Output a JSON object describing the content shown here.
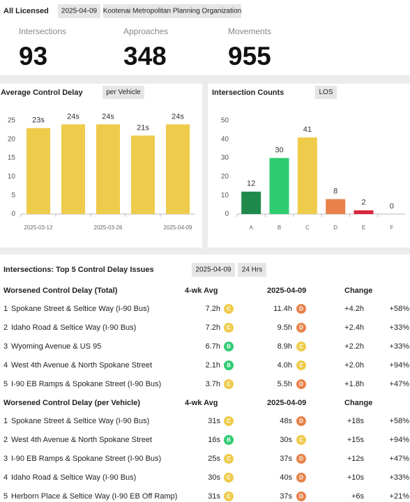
{
  "header": {
    "title": "All Licensed",
    "date": "2025-04-09",
    "organization": "Kootenai Metropolitan Planning Organization"
  },
  "kpis": [
    {
      "label": "Intersections",
      "value": 93
    },
    {
      "label": "Approaches",
      "value": 348
    },
    {
      "label": "Movements",
      "value": 955
    }
  ],
  "chart_data": [
    {
      "type": "bar",
      "title": "Average Control Delay",
      "subtitle": "per Vehicle",
      "categories": [
        "2025-03-12",
        null,
        "2025-03-26",
        null,
        "2025-04-09"
      ],
      "values": [
        23,
        24,
        24,
        21,
        24
      ],
      "value_labels": [
        "23s",
        "24s",
        "24s",
        "21s",
        "24s"
      ],
      "color": "#eecb4b",
      "ylim": [
        0,
        25
      ],
      "yticks": [
        0,
        5,
        10,
        15,
        20,
        25
      ],
      "grid": false
    },
    {
      "type": "bar",
      "title": "Intersection Counts",
      "subtitle": "LOS",
      "categories": [
        "A",
        "B",
        "C",
        "D",
        "E",
        "F"
      ],
      "values": [
        12,
        30,
        41,
        8,
        2,
        0
      ],
      "colors": [
        "#1f8a4c",
        "#2ecc71",
        "#eecb4b",
        "#e8824a",
        "#d7263d",
        "#9b1b30"
      ],
      "ylim": [
        0,
        50
      ],
      "yticks": [
        0,
        10,
        20,
        30,
        40,
        50
      ],
      "grid": false
    }
  ],
  "table": {
    "title": "Intersections: Top 5 Control Delay Issues",
    "date": "2025-04-09",
    "period": "24 Hrs",
    "groups": [
      {
        "title": "Worsened Control Delay (Total)",
        "col_avg": "4-wk Avg",
        "col_date": "2025-04-09",
        "col_change": "Change",
        "rows": [
          {
            "rank": 1,
            "name": "Spokane Street & Seltice Way (I-90 Bus)",
            "avg": "7.2h",
            "avg_los": "C",
            "current": "11.4h",
            "current_los": "D",
            "change": "+4.2h",
            "change_pct": "+58%"
          },
          {
            "rank": 2,
            "name": "Idaho Road & Seltice Way (I-90 Bus)",
            "avg": "7.2h",
            "avg_los": "C",
            "current": "9.5h",
            "current_los": "D",
            "change": "+2.4h",
            "change_pct": "+33%"
          },
          {
            "rank": 3,
            "name": "Wyoming Avenue & US 95",
            "avg": "6.7h",
            "avg_los": "B",
            "current": "8.9h",
            "current_los": "C",
            "change": "+2.2h",
            "change_pct": "+33%"
          },
          {
            "rank": 4,
            "name": "West 4th Avenue & North Spokane Street",
            "avg": "2.1h",
            "avg_los": "B",
            "current": "4.0h",
            "current_los": "C",
            "change": "+2.0h",
            "change_pct": "+94%"
          },
          {
            "rank": 5,
            "name": "I-90 EB Ramps & Spokane Street (I-90 Bus)",
            "avg": "3.7h",
            "avg_los": "C",
            "current": "5.5h",
            "current_los": "D",
            "change": "+1.8h",
            "change_pct": "+47%"
          }
        ]
      },
      {
        "title": "Worsened Control Delay (per Vehicle)",
        "col_avg": "4-wk Avg",
        "col_date": "2025-04-09",
        "col_change": "Change",
        "rows": [
          {
            "rank": 1,
            "name": "Spokane Street & Seltice Way (I-90 Bus)",
            "avg": "31s",
            "avg_los": "C",
            "current": "48s",
            "current_los": "D",
            "change": "+18s",
            "change_pct": "+58%"
          },
          {
            "rank": 2,
            "name": "West 4th Avenue & North Spokane Street",
            "avg": "16s",
            "avg_los": "B",
            "current": "30s",
            "current_los": "C",
            "change": "+15s",
            "change_pct": "+94%"
          },
          {
            "rank": 3,
            "name": "I-90 EB Ramps & Spokane Street (I-90 Bus)",
            "avg": "25s",
            "avg_los": "C",
            "current": "37s",
            "current_los": "D",
            "change": "+12s",
            "change_pct": "+47%"
          },
          {
            "rank": 4,
            "name": "Idaho Road & Seltice Way (I-90 Bus)",
            "avg": "30s",
            "avg_los": "C",
            "current": "40s",
            "current_los": "D",
            "change": "+10s",
            "change_pct": "+33%"
          },
          {
            "rank": 5,
            "name": "Herborn Place & Seltice Way (I-90 EB Off Ramp)",
            "avg": "31s",
            "avg_los": "C",
            "current": "37s",
            "current_los": "D",
            "change": "+6s",
            "change_pct": "+21%"
          }
        ]
      }
    ]
  }
}
